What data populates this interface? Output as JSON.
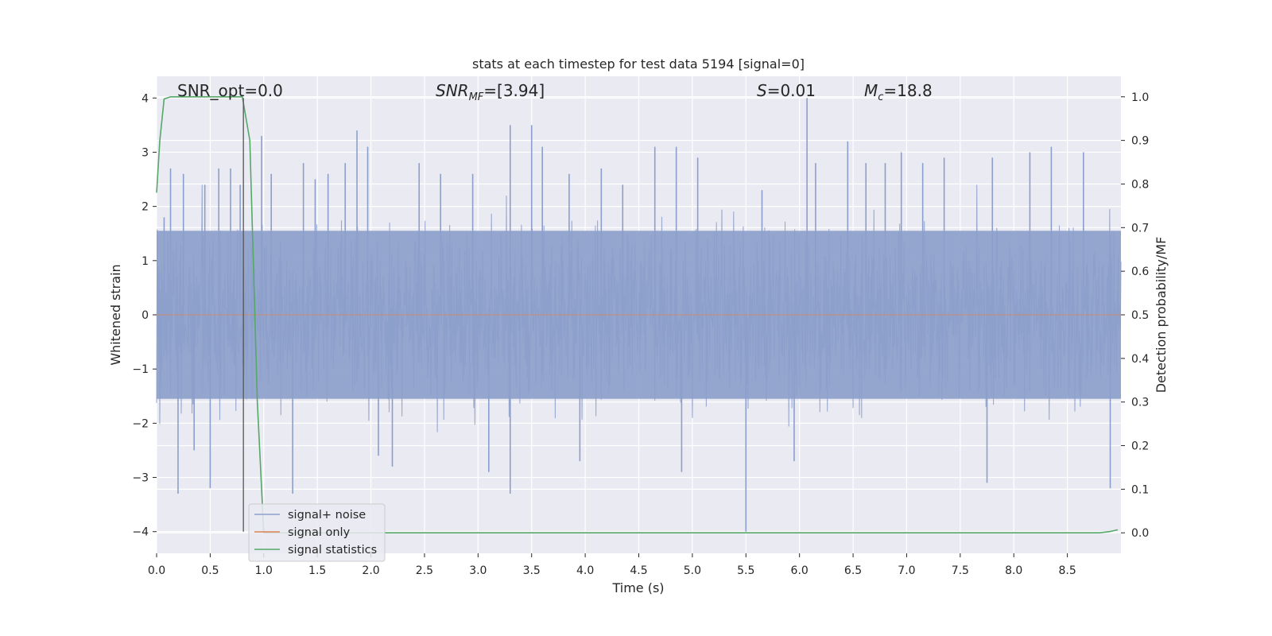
{
  "chart_data": {
    "type": "line",
    "title": "stats at each timestep for test data 5194 [signal=0]",
    "xlabel": "Time (s)",
    "ylabel": "Whitened strain",
    "y2label": "Detection probability/MF",
    "xlim": [
      0.0,
      9.0
    ],
    "ylim": [
      -4.4,
      4.4
    ],
    "y2lim": [
      -0.047,
      1.047
    ],
    "x_ticks": [
      0.0,
      0.5,
      1.0,
      1.5,
      2.0,
      2.5,
      3.0,
      3.5,
      4.0,
      4.5,
      5.0,
      5.5,
      6.0,
      6.5,
      7.0,
      7.5,
      8.0,
      8.5
    ],
    "x_tick_labels": [
      "0.0",
      "0.5",
      "1.0",
      "1.5",
      "2.0",
      "2.5",
      "3.0",
      "3.5",
      "4.0",
      "4.5",
      "5.0",
      "5.5",
      "6.0",
      "6.5",
      "7.0",
      "7.5",
      "8.0",
      "8.5"
    ],
    "y_ticks": [
      -4,
      -3,
      -2,
      -1,
      0,
      1,
      2,
      3,
      4
    ],
    "y_tick_labels": [
      "−4",
      "−3",
      "−2",
      "−1",
      "0",
      "1",
      "2",
      "3",
      "4"
    ],
    "y2_ticks": [
      0.0,
      0.1,
      0.2,
      0.3,
      0.4,
      0.5,
      0.6,
      0.7,
      0.8,
      0.9,
      1.0
    ],
    "y2_tick_labels": [
      "0.0",
      "0.1",
      "0.2",
      "0.3",
      "0.4",
      "0.5",
      "0.6",
      "0.7",
      "0.8",
      "0.9",
      "1.0"
    ],
    "grid": true,
    "legend_position": "bottom-left",
    "legend": [
      "signal+ noise",
      "signal only",
      "signal statistics"
    ],
    "colors": {
      "signal_noise": "#8c9fcb",
      "signal_only": "#dd8452",
      "signal_statistics": "#55a868",
      "vline": "#555555",
      "background": "#eaeaf2",
      "grid": "#ffffff"
    },
    "annotations": {
      "snr_opt": "SNR_opt=0.0",
      "snr_mf_base": "SNR",
      "snr_mf_sub": "MF",
      "snr_mf_value": "=[3.94]",
      "s_label": "S",
      "s_value": "=0.01",
      "mc_base": "M",
      "mc_sub": "c",
      "mc_value": "=18.8"
    },
    "vertical_marker_x": 0.81,
    "series": [
      {
        "name": "signal+ noise",
        "axis": "left",
        "description_values": "noise band approx ±1.6 typical, peaks",
        "peaks": [
          [
            0.07,
            1.8
          ],
          [
            0.13,
            2.7
          ],
          [
            0.2,
            -3.3
          ],
          [
            0.25,
            2.6
          ],
          [
            0.35,
            -2.5
          ],
          [
            0.45,
            2.4
          ],
          [
            0.5,
            -3.2
          ],
          [
            0.58,
            2.7
          ],
          [
            0.69,
            2.7
          ],
          [
            0.78,
            2.4
          ],
          [
            0.98,
            3.3
          ],
          [
            1.07,
            2.6
          ],
          [
            1.27,
            -3.3
          ],
          [
            1.37,
            2.8
          ],
          [
            1.48,
            2.5
          ],
          [
            1.6,
            2.6
          ],
          [
            1.76,
            2.8
          ],
          [
            1.87,
            3.4
          ],
          [
            1.97,
            3.1
          ],
          [
            2.07,
            -2.6
          ],
          [
            2.2,
            -2.8
          ],
          [
            2.45,
            2.8
          ],
          [
            2.65,
            2.6
          ],
          [
            2.95,
            2.6
          ],
          [
            3.1,
            -2.9
          ],
          [
            3.3,
            3.5
          ],
          [
            3.3,
            -3.3
          ],
          [
            3.5,
            3.5
          ],
          [
            3.6,
            3.1
          ],
          [
            3.85,
            2.6
          ],
          [
            3.95,
            -2.7
          ],
          [
            4.15,
            2.7
          ],
          [
            4.35,
            2.4
          ],
          [
            4.65,
            3.1
          ],
          [
            4.85,
            3.1
          ],
          [
            4.9,
            -2.9
          ],
          [
            5.05,
            2.9
          ],
          [
            5.5,
            -4.0
          ],
          [
            5.65,
            2.3
          ],
          [
            5.95,
            -2.7
          ],
          [
            6.07,
            4.0
          ],
          [
            6.15,
            2.8
          ],
          [
            6.45,
            3.2
          ],
          [
            6.62,
            2.8
          ],
          [
            6.8,
            2.8
          ],
          [
            6.95,
            3.0
          ],
          [
            7.15,
            2.8
          ],
          [
            7.35,
            2.9
          ],
          [
            7.75,
            -3.1
          ],
          [
            7.8,
            2.9
          ],
          [
            8.15,
            3.0
          ],
          [
            8.35,
            3.1
          ],
          [
            8.65,
            3.0
          ],
          [
            8.9,
            -3.2
          ]
        ]
      },
      {
        "name": "signal statistics",
        "axis": "right",
        "x": [
          0.0,
          0.03,
          0.07,
          0.13,
          0.2,
          0.3,
          0.5,
          0.7,
          0.8,
          0.87,
          0.94,
          1.0,
          1.2,
          2.0,
          4.0,
          6.0,
          8.0,
          8.8,
          8.9,
          8.97
        ],
        "y": [
          0.78,
          0.9,
          0.995,
          1.0,
          1.0,
          1.0,
          1.0,
          1.0,
          1.0,
          0.9,
          0.3,
          0.0,
          0.0,
          0.0,
          0.0,
          0.0,
          0.0,
          0.0,
          0.003,
          0.007
        ]
      },
      {
        "name": "signal only",
        "axis": "left",
        "x": [
          0.0,
          9.0
        ],
        "y": [
          0.0,
          0.0
        ]
      }
    ]
  }
}
